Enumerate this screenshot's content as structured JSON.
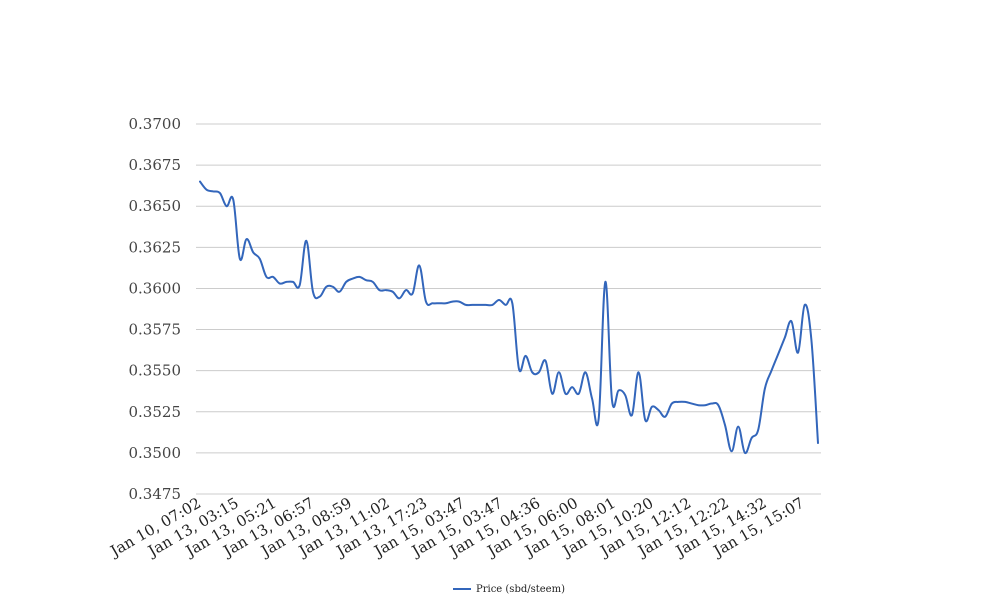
{
  "chart_data": {
    "type": "line",
    "title": "",
    "xlabel": "",
    "ylabel": "",
    "ylim": [
      0.3475,
      0.37
    ],
    "yticks": [
      "0.3475",
      "0.3500",
      "0.3525",
      "0.3550",
      "0.3575",
      "0.3600",
      "0.3625",
      "0.3650",
      "0.3675",
      "0.3700"
    ],
    "xtick_labels": [
      "Jan 10, 07:02",
      "Jan 13, 03:15",
      "Jan 13, 05:21",
      "Jan 13, 06:57",
      "Jan 13, 08:59",
      "Jan 13, 11:02",
      "Jan 13, 17:23",
      "Jan 15, 03:47",
      "Jan 15, 03:47",
      "Jan 15, 04:36",
      "Jan 15, 06:00",
      "Jan 15, 08:01",
      "Jan 15, 10:20",
      "Jan 15, 12:12",
      "Jan 15, 12:22",
      "Jan 15, 14:32",
      "Jan 15, 15:07"
    ],
    "legend_position": "bottom",
    "grid": true,
    "series": [
      {
        "name": "Price (sbd/steem)",
        "color": "#3366bb",
        "values": [
          0.3665,
          0.366,
          0.3659,
          0.3658,
          0.365,
          0.3654,
          0.3618,
          0.363,
          0.3622,
          0.3618,
          0.3607,
          0.3607,
          0.3603,
          0.3604,
          0.3604,
          0.3602,
          0.3629,
          0.3598,
          0.3595,
          0.3601,
          0.3601,
          0.3598,
          0.3604,
          0.3606,
          0.3607,
          0.3605,
          0.3604,
          0.3599,
          0.3599,
          0.3598,
          0.3594,
          0.3599,
          0.3597,
          0.3614,
          0.3592,
          0.3591,
          0.3591,
          0.3591,
          0.3592,
          0.3592,
          0.359,
          0.359,
          0.359,
          0.359,
          0.359,
          0.3593,
          0.359,
          0.3591,
          0.3551,
          0.3559,
          0.3549,
          0.3549,
          0.3556,
          0.3536,
          0.3549,
          0.3536,
          0.354,
          0.3536,
          0.3549,
          0.3533,
          0.3521,
          0.3604,
          0.3532,
          0.3538,
          0.3535,
          0.3523,
          0.3549,
          0.352,
          0.3528,
          0.3526,
          0.3522,
          0.353,
          0.3531,
          0.3531,
          0.353,
          0.3529,
          0.3529,
          0.353,
          0.3529,
          0.3517,
          0.3501,
          0.3516,
          0.35,
          0.3509,
          0.3514,
          0.3539,
          0.355,
          0.356,
          0.357,
          0.358,
          0.3561,
          0.359,
          0.3569,
          0.3506
        ]
      }
    ]
  }
}
